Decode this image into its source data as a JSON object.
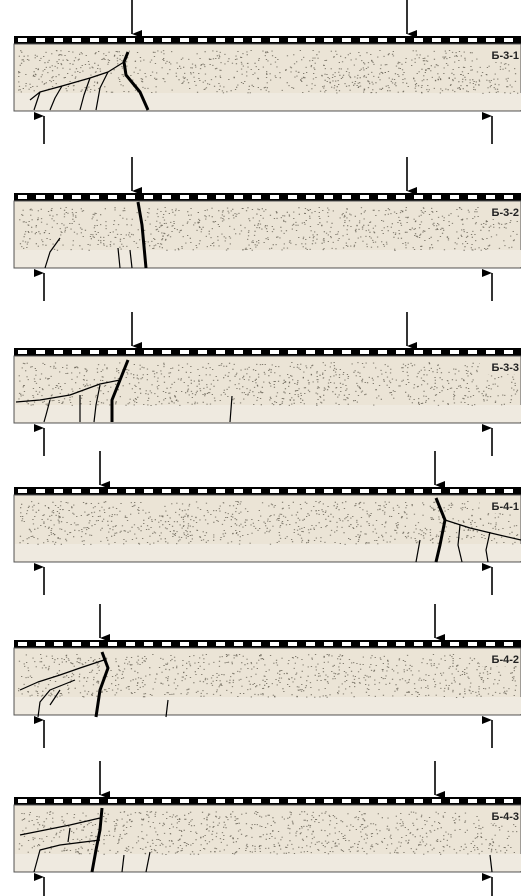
{
  "beams": [
    {
      "label": "Б-3-1"
    },
    {
      "label": "Б-3-2"
    },
    {
      "label": "Б-3-3"
    },
    {
      "label": "Б-4-1"
    },
    {
      "label": "Б-4-2"
    },
    {
      "label": "Б-4-3"
    }
  ]
}
